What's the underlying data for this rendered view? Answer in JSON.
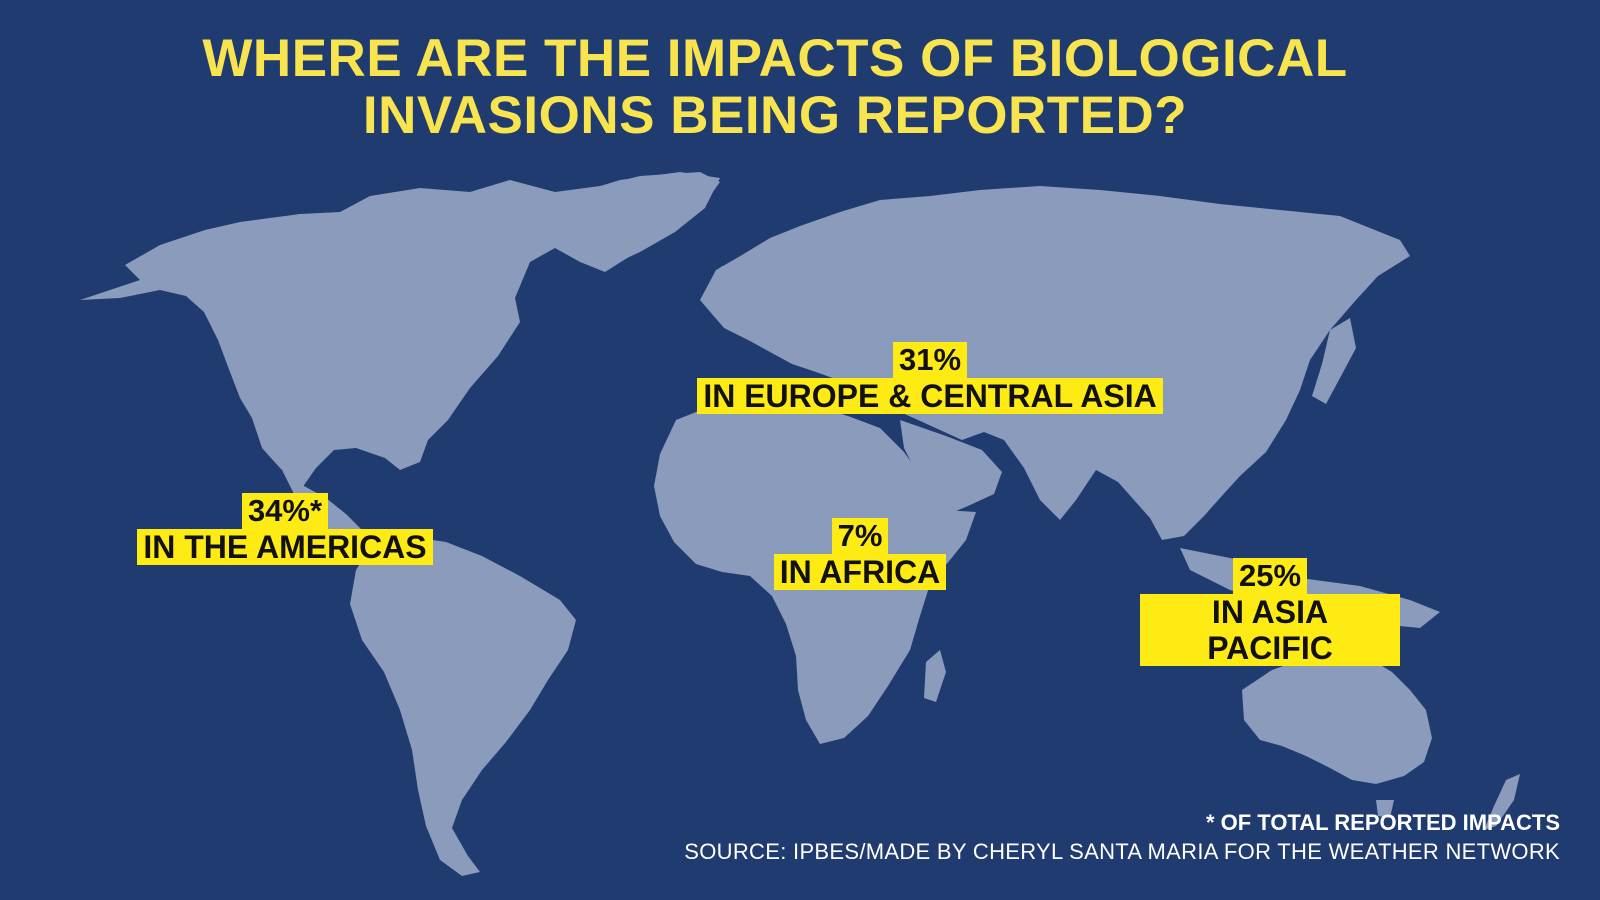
{
  "title": {
    "line1": "WHERE ARE THE IMPACTS OF BIOLOGICAL",
    "line2": "INVASIONS BEING REPORTED?"
  },
  "regions": {
    "americas": {
      "value": "34%*",
      "name": "IN THE AMERICAS",
      "share_percent": 34
    },
    "europe_central_asia": {
      "value": "31%",
      "name": "IN EUROPE & CENTRAL ASIA",
      "share_percent": 31
    },
    "africa": {
      "value": "7%",
      "name": "IN AFRICA",
      "share_percent": 7
    },
    "asia_pacific": {
      "value": "25%",
      "name": "IN ASIA PACIFIC",
      "share_percent": 25
    }
  },
  "footer": {
    "note": "* OF TOTAL REPORTED IMPACTS",
    "source": "SOURCE: IPBES/MADE BY CHERYL SANTA MARIA FOR THE WEATHER NETWORK"
  },
  "colors": {
    "background": "#1f3b6f",
    "land": "#8a9bbb",
    "title": "#f7e44e",
    "highlight": "#ffeb14",
    "footer_text": "#ffffff"
  }
}
